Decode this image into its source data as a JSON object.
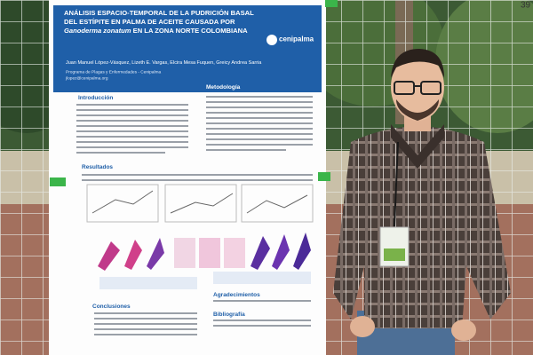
{
  "corner_number": "39",
  "poster": {
    "title": [
      "ANÁLISIS ESPACIO-TEMPORAL DE LA PUDRICIÓN BASAL DEL ESTÍPITE EN PALMA DE ACEITE CAUSADA POR ",
      "Ganoderma zonatum",
      " EN LA ZONA NORTE COLOMBIANA"
    ],
    "authors": "Juan Manuel López-Vásquez, Lizeth E. Vargas, Elcira Mesa Fuquen, Greicy Andrea Sarria",
    "affiliation": "Programa de Plagas y Enfermedades - Cenipalma",
    "email": "jlopez@cenipalma.org",
    "logo": "cenipalma",
    "sections": [
      "Introducción",
      "Metodología",
      "Resultados",
      "Agradecimientos",
      "Conclusiones",
      "Bibliografía"
    ]
  }
}
